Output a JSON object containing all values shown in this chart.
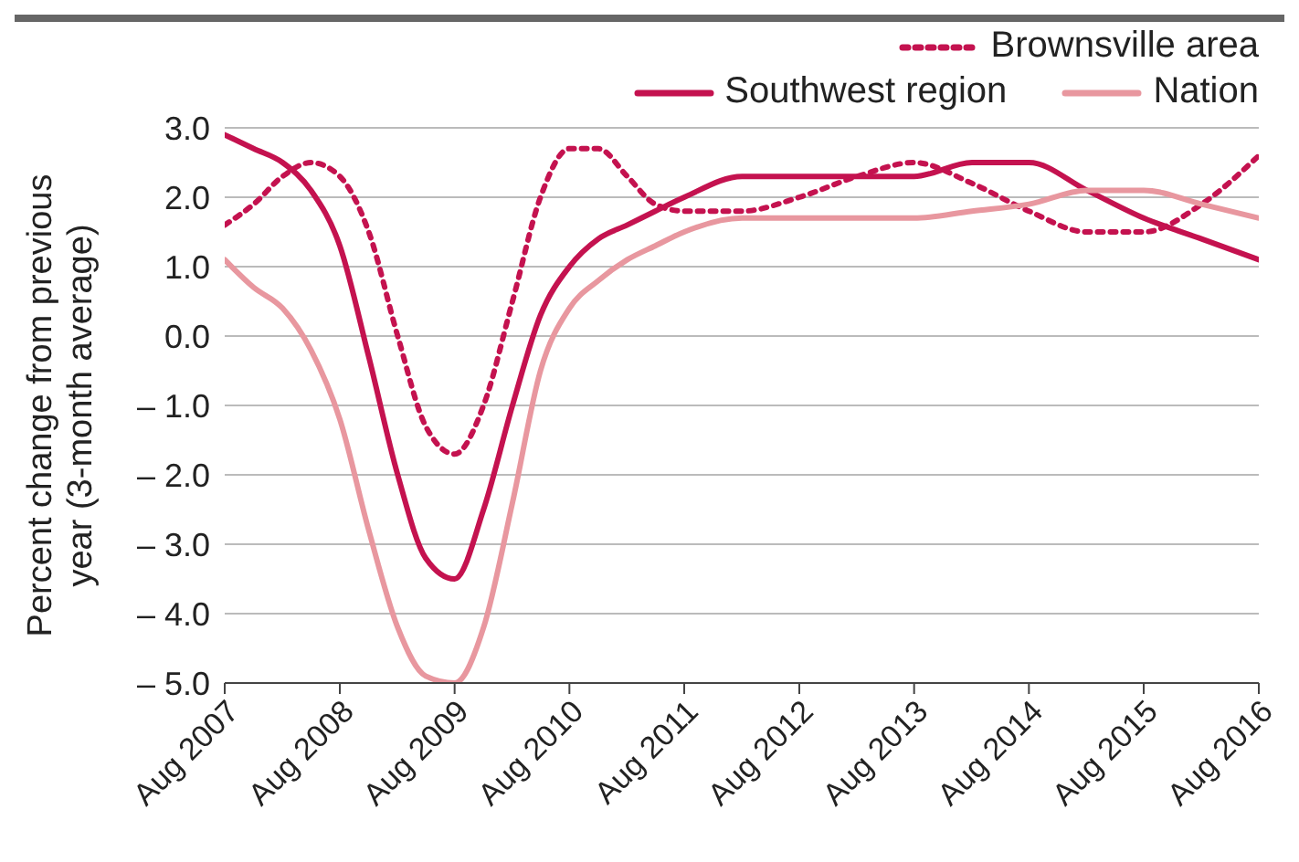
{
  "chart_data": {
    "type": "line",
    "ylabel": "Percent change from previous year (3-month average)",
    "x": [
      "2007-08",
      "2007-11",
      "2008-02",
      "2008-05",
      "2008-08",
      "2008-11",
      "2009-02",
      "2009-05",
      "2009-08",
      "2009-11",
      "2010-02",
      "2010-05",
      "2010-08",
      "2010-11",
      "2011-02",
      "2011-05",
      "2011-08",
      "2012-02",
      "2012-08",
      "2013-02",
      "2013-08",
      "2014-02",
      "2014-08",
      "2015-02",
      "2015-08",
      "2016-02",
      "2016-08"
    ],
    "series": [
      {
        "name": "Brownsville area",
        "color": "#c4124f",
        "line_style": "dotted",
        "values": [
          1.6,
          1.9,
          2.3,
          2.5,
          2.3,
          1.5,
          0.0,
          -1.3,
          -1.7,
          -1.0,
          0.5,
          2.0,
          2.7,
          2.7,
          2.3,
          1.9,
          1.8,
          1.8,
          2.0,
          2.3,
          2.5,
          2.2,
          1.8,
          1.5,
          1.5,
          1.9,
          2.6
        ]
      },
      {
        "name": "Southwest region",
        "color": "#c4124f",
        "line_style": "solid",
        "values": [
          2.9,
          2.7,
          2.5,
          2.1,
          1.3,
          -0.3,
          -2.0,
          -3.2,
          -3.5,
          -2.5,
          -1.0,
          0.3,
          1.0,
          1.4,
          1.6,
          1.8,
          2.0,
          2.3,
          2.3,
          2.3,
          2.3,
          2.5,
          2.5,
          2.1,
          1.7,
          1.4,
          1.1
        ]
      },
      {
        "name": "Nation",
        "color": "#e8979f",
        "line_style": "solid",
        "values": [
          1.1,
          0.7,
          0.4,
          -0.2,
          -1.2,
          -2.8,
          -4.2,
          -4.9,
          -5.0,
          -4.2,
          -2.4,
          -0.5,
          0.4,
          0.8,
          1.1,
          1.3,
          1.5,
          1.7,
          1.7,
          1.7,
          1.7,
          1.8,
          1.9,
          2.1,
          2.1,
          1.9,
          1.7
        ]
      }
    ],
    "xlim": [
      "2007-08",
      "2016-08"
    ],
    "xticks": [
      {
        "value": "2007-08",
        "label": "Aug 2007"
      },
      {
        "value": "2008-08",
        "label": "Aug 2008"
      },
      {
        "value": "2009-08",
        "label": "Aug 2009"
      },
      {
        "value": "2010-08",
        "label": "Aug 2010"
      },
      {
        "value": "2011-08",
        "label": "Aug 2011"
      },
      {
        "value": "2012-08",
        "label": "Aug 2012"
      },
      {
        "value": "2013-08",
        "label": "Aug 2013"
      },
      {
        "value": "2014-08",
        "label": "Aug 2014"
      },
      {
        "value": "2015-08",
        "label": "Aug 2015"
      },
      {
        "value": "2016-08",
        "label": "Aug 2016"
      }
    ],
    "ylim": [
      -5,
      3
    ],
    "yticks": [
      {
        "value": -5,
        "label": "– 5.0"
      },
      {
        "value": -4,
        "label": "– 4.0"
      },
      {
        "value": -3,
        "label": "– 3.0"
      },
      {
        "value": -2,
        "label": "– 2.0"
      },
      {
        "value": -1,
        "label": "– 1.0"
      },
      {
        "value": 0,
        "label": "0.0"
      },
      {
        "value": 1,
        "label": "1.0"
      },
      {
        "value": 2,
        "label": "2.0"
      },
      {
        "value": 3,
        "label": "3.0"
      }
    ],
    "grid": "y",
    "legend": "top right",
    "marker": "none"
  }
}
